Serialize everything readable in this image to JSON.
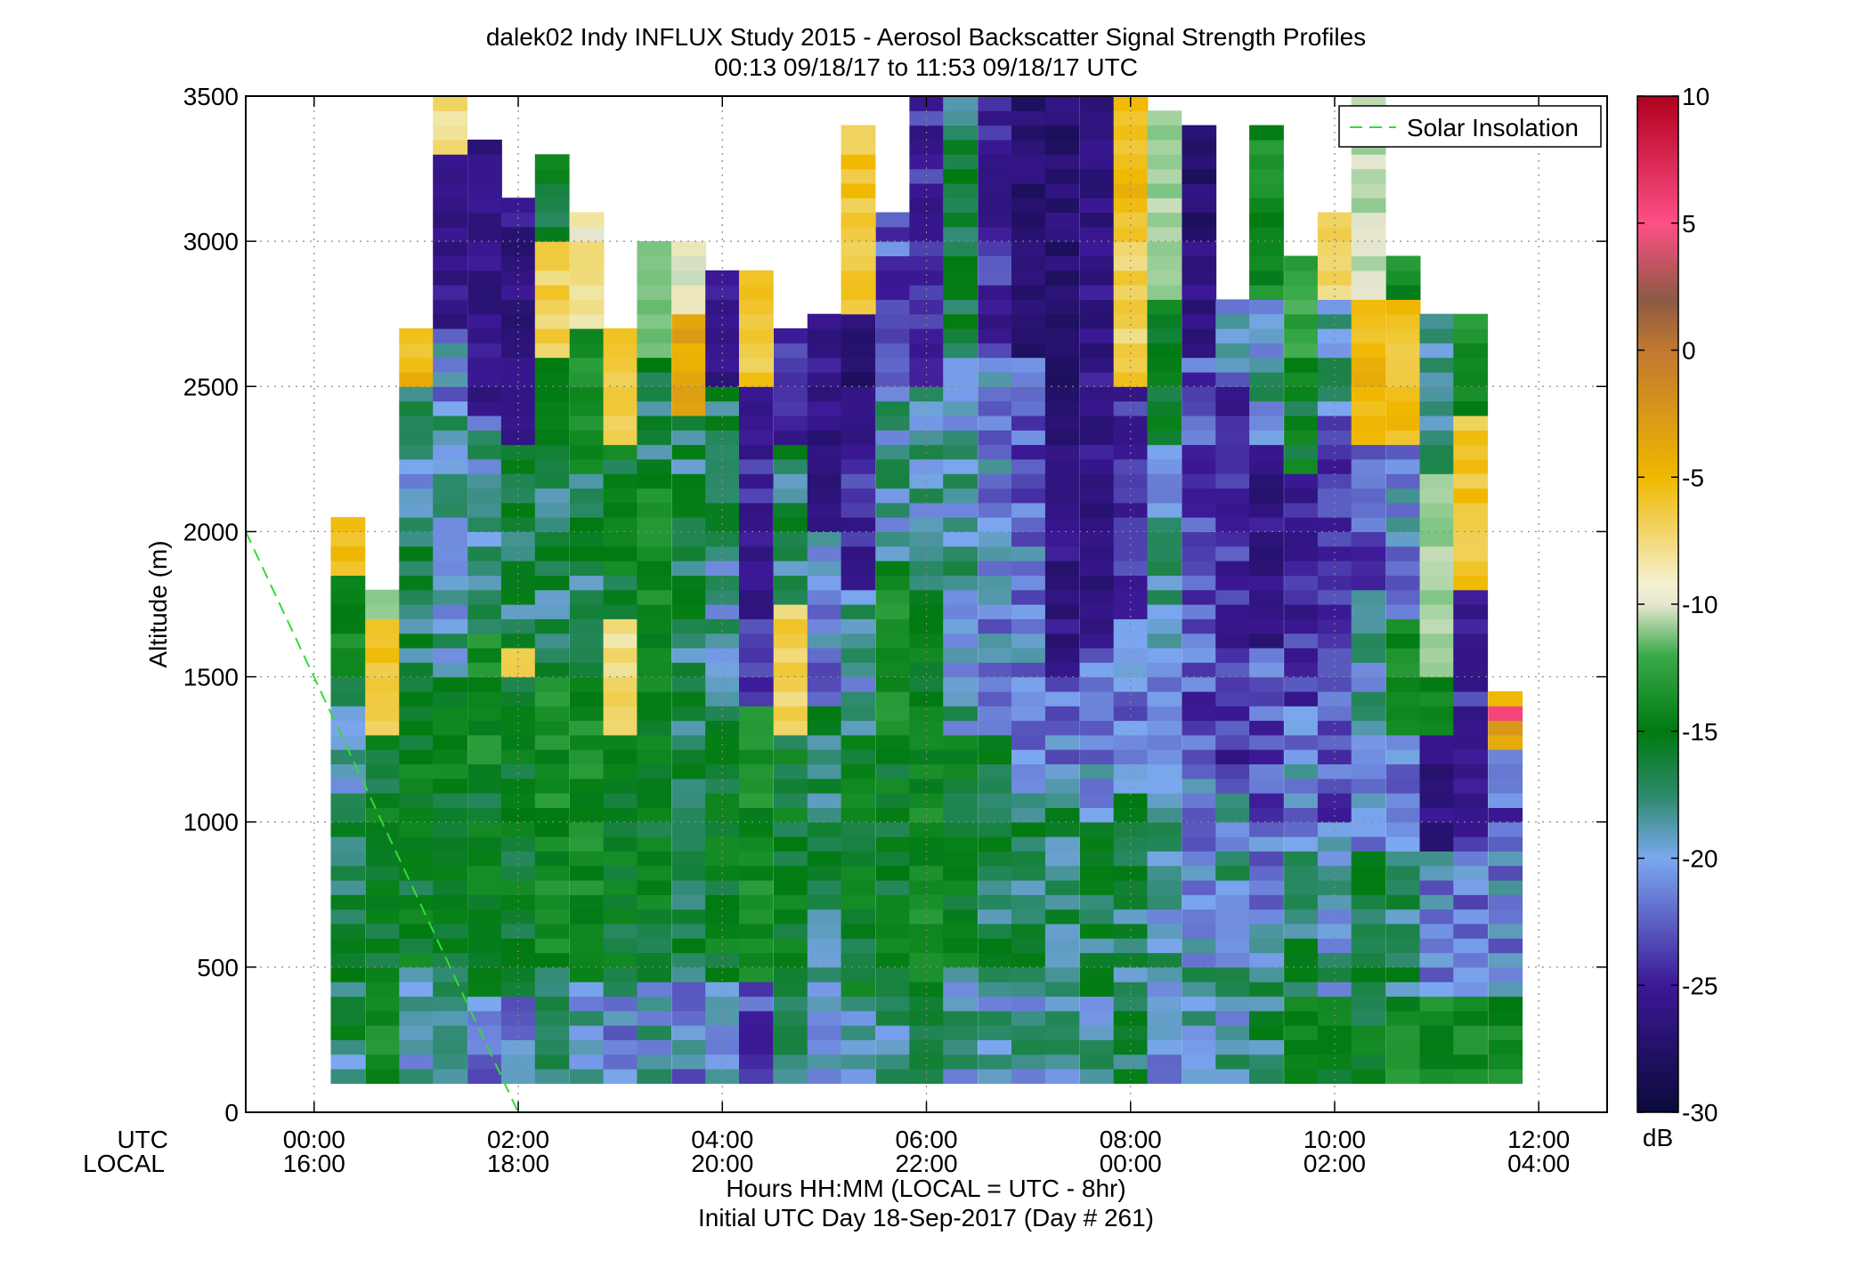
{
  "title": "dalek02 Indy INFLUX Study 2015 - Aerosol Backscatter Signal Strength Profiles",
  "subtitle": "00:13 09/18/17 to 11:53 09/18/17  UTC",
  "ylabel": "Altitude (m)",
  "xlabel": "Hours HH:MM  (LOCAL = UTC - 8hr)",
  "footer": "Initial UTC Day 18-Sep-2017 (Day # 261)",
  "row_label_utc": "UTC",
  "row_label_local": "LOCAL",
  "legend_label": "Solar Insolation",
  "colorbar_unit": "dB",
  "colors": {
    "solar_line": "#33dd33",
    "grid": "#888888"
  },
  "chart_data": {
    "type": "heatmap",
    "x_unit": "UTC hours",
    "xlim": [
      -0.67,
      12.67
    ],
    "ylim": [
      0,
      3500
    ],
    "y_ticks": [
      "0",
      "500",
      "1000",
      "1500",
      "2000",
      "2500",
      "3000",
      "3500"
    ],
    "x_ticks_utc": [
      "00:00",
      "02:00",
      "04:00",
      "06:00",
      "08:00",
      "10:00",
      "12:00"
    ],
    "x_ticks_local": [
      "16:00",
      "18:00",
      "20:00",
      "22:00",
      "00:00",
      "02:00",
      "04:00"
    ],
    "colorbar": {
      "min": -30,
      "max": 10,
      "ticks": [
        "10",
        "5",
        "0",
        "-5",
        "-10",
        "-15",
        "-20",
        "-25",
        "-30"
      ]
    },
    "profile_width_hours": 0.333,
    "bin_height_m": 50,
    "min_altitude_m": 100,
    "profiles": [
      {
        "t": 0.33,
        "top": 2050,
        "segs": [
          [
            100,
            250,
            -22
          ],
          [
            250,
            600,
            -21
          ],
          [
            600,
            1000,
            -21
          ],
          [
            1000,
            1500,
            -22
          ],
          [
            1500,
            1850,
            -19
          ],
          [
            1850,
            2050,
            -6
          ]
        ]
      },
      {
        "t": 0.67,
        "top": 1800,
        "segs": [
          [
            100,
            400,
            -19
          ],
          [
            400,
            1300,
            -20
          ],
          [
            1300,
            1700,
            -6
          ],
          [
            1700,
            1800,
            -13
          ]
        ]
      },
      {
        "t": 1.0,
        "top": 2700,
        "segs": [
          [
            100,
            500,
            -22
          ],
          [
            500,
            1350,
            -20
          ],
          [
            1350,
            2000,
            -21
          ],
          [
            2000,
            2500,
            -22
          ],
          [
            2500,
            2700,
            -5
          ]
        ]
      },
      {
        "t": 1.33,
        "top": 3500,
        "segs": [
          [
            100,
            500,
            -22
          ],
          [
            500,
            1500,
            -20
          ],
          [
            1500,
            2450,
            -22
          ],
          [
            2450,
            2700,
            -23
          ],
          [
            2700,
            3300,
            -26
          ],
          [
            3300,
            3500,
            -8
          ]
        ]
      },
      {
        "t": 1.67,
        "top": 3350,
        "segs": [
          [
            100,
            400,
            -23
          ],
          [
            400,
            1200,
            -20
          ],
          [
            1200,
            1650,
            -19
          ],
          [
            1650,
            2400,
            -22
          ],
          [
            2400,
            3350,
            -26
          ]
        ]
      },
      {
        "t": 2.0,
        "top": 3150,
        "segs": [
          [
            100,
            400,
            -23
          ],
          [
            400,
            1500,
            -20
          ],
          [
            1500,
            1600,
            -7
          ],
          [
            1600,
            2300,
            -21
          ],
          [
            2300,
            3150,
            -26
          ]
        ]
      },
      {
        "t": 2.33,
        "top": 3300,
        "segs": [
          [
            100,
            500,
            -22
          ],
          [
            500,
            1500,
            -19
          ],
          [
            1500,
            2300,
            -21
          ],
          [
            2300,
            2600,
            -19
          ],
          [
            2600,
            3000,
            -7
          ],
          [
            3000,
            3300,
            -20
          ]
        ]
      },
      {
        "t": 2.67,
        "top": 3100,
        "segs": [
          [
            100,
            450,
            -22
          ],
          [
            450,
            1500,
            -19
          ],
          [
            1500,
            2200,
            -21
          ],
          [
            2200,
            2700,
            -19
          ],
          [
            2700,
            3100,
            -9
          ]
        ]
      },
      {
        "t": 3.0,
        "top": 2700,
        "segs": [
          [
            100,
            400,
            -23
          ],
          [
            400,
            1300,
            -20
          ],
          [
            1300,
            1700,
            -8
          ],
          [
            1700,
            2300,
            -20
          ],
          [
            2300,
            2700,
            -6
          ]
        ]
      },
      {
        "t": 3.33,
        "top": 3000,
        "segs": [
          [
            100,
            450,
            -22
          ],
          [
            450,
            1400,
            -20
          ],
          [
            1400,
            2200,
            -19
          ],
          [
            2200,
            2600,
            -21
          ],
          [
            2600,
            3000,
            -14
          ]
        ]
      },
      {
        "t": 3.67,
        "top": 3000,
        "segs": [
          [
            100,
            450,
            -23
          ],
          [
            450,
            1300,
            -21
          ],
          [
            1300,
            2400,
            -21
          ],
          [
            2400,
            2750,
            -4
          ],
          [
            2750,
            3000,
            -10
          ]
        ]
      },
      {
        "t": 4.0,
        "top": 2900,
        "segs": [
          [
            100,
            450,
            -23
          ],
          [
            450,
            1400,
            -20
          ],
          [
            1400,
            2000,
            -22
          ],
          [
            2000,
            2500,
            -21
          ],
          [
            2500,
            2900,
            -26
          ]
        ]
      },
      {
        "t": 4.33,
        "top": 2900,
        "segs": [
          [
            100,
            450,
            -24
          ],
          [
            450,
            1400,
            -19
          ],
          [
            1400,
            2000,
            -25
          ],
          [
            2000,
            2500,
            -25
          ],
          [
            2500,
            2900,
            -6
          ]
        ]
      },
      {
        "t": 4.67,
        "top": 2700,
        "segs": [
          [
            100,
            400,
            -21
          ],
          [
            400,
            1300,
            -20
          ],
          [
            1300,
            1750,
            -7
          ],
          [
            1750,
            2300,
            -21
          ],
          [
            2300,
            2700,
            -25
          ]
        ]
      },
      {
        "t": 5.0,
        "top": 2750,
        "segs": [
          [
            100,
            500,
            -22
          ],
          [
            500,
            1400,
            -21
          ],
          [
            1400,
            2000,
            -23
          ],
          [
            2000,
            2750,
            -26
          ]
        ]
      },
      {
        "t": 5.33,
        "top": 3400,
        "segs": [
          [
            100,
            400,
            -22
          ],
          [
            400,
            1300,
            -20
          ],
          [
            1300,
            1800,
            -22
          ],
          [
            1800,
            2500,
            -25
          ],
          [
            2500,
            2750,
            -27
          ],
          [
            2750,
            3400,
            -6
          ]
        ]
      },
      {
        "t": 5.67,
        "top": 3100,
        "segs": [
          [
            100,
            500,
            -22
          ],
          [
            500,
            1300,
            -20
          ],
          [
            1300,
            1900,
            -19
          ],
          [
            1900,
            2500,
            -22
          ],
          [
            2500,
            3100,
            -24
          ]
        ]
      },
      {
        "t": 6.0,
        "top": 3500,
        "segs": [
          [
            100,
            400,
            -21
          ],
          [
            400,
            1300,
            -19
          ],
          [
            1300,
            1800,
            -20
          ],
          [
            1800,
            2500,
            -22
          ],
          [
            2500,
            3000,
            -25
          ],
          [
            3000,
            3500,
            -25
          ]
        ]
      },
      {
        "t": 6.33,
        "top": 3500,
        "segs": [
          [
            100,
            500,
            -22
          ],
          [
            500,
            1300,
            -20
          ],
          [
            1300,
            2000,
            -22
          ],
          [
            2000,
            2600,
            -22
          ],
          [
            2600,
            3500,
            -21
          ]
        ]
      },
      {
        "t": 6.67,
        "top": 3500,
        "segs": [
          [
            100,
            450,
            -22
          ],
          [
            450,
            1300,
            -21
          ],
          [
            1300,
            2000,
            -23
          ],
          [
            2000,
            2600,
            -23
          ],
          [
            2600,
            3500,
            -25
          ]
        ]
      },
      {
        "t": 7.0,
        "top": 3500,
        "segs": [
          [
            100,
            400,
            -22
          ],
          [
            400,
            1100,
            -21
          ],
          [
            1100,
            2000,
            -23
          ],
          [
            2000,
            2600,
            -24
          ],
          [
            2600,
            3500,
            -27
          ]
        ]
      },
      {
        "t": 7.33,
        "top": 3500,
        "segs": [
          [
            100,
            450,
            -22
          ],
          [
            450,
            1100,
            -21
          ],
          [
            1100,
            1500,
            -23
          ],
          [
            1500,
            2400,
            -26
          ],
          [
            2400,
            3500,
            -27
          ]
        ]
      },
      {
        "t": 7.67,
        "top": 3500,
        "segs": [
          [
            100,
            400,
            -22
          ],
          [
            400,
            1000,
            -21
          ],
          [
            1000,
            1600,
            -23
          ],
          [
            1600,
            2400,
            -26
          ],
          [
            2400,
            3500,
            -26
          ]
        ]
      },
      {
        "t": 8.0,
        "top": 3500,
        "segs": [
          [
            100,
            500,
            -21
          ],
          [
            500,
            1100,
            -21
          ],
          [
            1100,
            1700,
            -23
          ],
          [
            1700,
            2500,
            -25
          ],
          [
            2500,
            3100,
            -7
          ],
          [
            3100,
            3500,
            -5
          ]
        ]
      },
      {
        "t": 8.33,
        "top": 3450,
        "segs": [
          [
            100,
            400,
            -23
          ],
          [
            400,
            1000,
            -22
          ],
          [
            1000,
            1600,
            -23
          ],
          [
            1600,
            2300,
            -22
          ],
          [
            2300,
            2800,
            -20
          ],
          [
            2800,
            3450,
            -12
          ]
        ]
      },
      {
        "t": 8.67,
        "top": 3400,
        "segs": [
          [
            100,
            500,
            -22
          ],
          [
            500,
            1200,
            -23
          ],
          [
            1200,
            1800,
            -24
          ],
          [
            1800,
            2600,
            -24
          ],
          [
            2600,
            3000,
            -26
          ],
          [
            3000,
            3400,
            -27
          ]
        ]
      },
      {
        "t": 9.0,
        "top": 2800,
        "segs": [
          [
            100,
            400,
            -22
          ],
          [
            400,
            1100,
            -22
          ],
          [
            1100,
            1600,
            -25
          ],
          [
            1600,
            2500,
            -25
          ],
          [
            2500,
            2800,
            -23
          ]
        ]
      },
      {
        "t": 9.33,
        "top": 3400,
        "segs": [
          [
            100,
            500,
            -21
          ],
          [
            500,
            1000,
            -23
          ],
          [
            1000,
            1600,
            -24
          ],
          [
            1600,
            2300,
            -26
          ],
          [
            2300,
            2800,
            -22
          ],
          [
            2800,
            3400,
            -19
          ]
        ]
      },
      {
        "t": 9.67,
        "top": 2950,
        "segs": [
          [
            100,
            400,
            -20
          ],
          [
            400,
            900,
            -21
          ],
          [
            900,
            1400,
            -23
          ],
          [
            1400,
            2200,
            -25
          ],
          [
            2200,
            2600,
            -20
          ],
          [
            2600,
            2950,
            -17
          ]
        ]
      },
      {
        "t": 10.0,
        "top": 3100,
        "segs": [
          [
            100,
            400,
            -20
          ],
          [
            400,
            1000,
            -22
          ],
          [
            1000,
            1600,
            -24
          ],
          [
            1600,
            2400,
            -24
          ],
          [
            2400,
            2800,
            -22
          ],
          [
            2800,
            3100,
            -8
          ]
        ]
      },
      {
        "t": 10.33,
        "top": 3500,
        "segs": [
          [
            100,
            400,
            -20
          ],
          [
            400,
            900,
            -21
          ],
          [
            900,
            1300,
            -23
          ],
          [
            1300,
            1800,
            -22
          ],
          [
            1800,
            2300,
            -24
          ],
          [
            2300,
            2800,
            -5
          ],
          [
            2800,
            3500,
            -11
          ]
        ]
      },
      {
        "t": 10.67,
        "top": 2950,
        "segs": [
          [
            100,
            400,
            -19
          ],
          [
            400,
            900,
            -21
          ],
          [
            900,
            1300,
            -23
          ],
          [
            1300,
            1700,
            -19
          ],
          [
            1700,
            2300,
            -23
          ],
          [
            2300,
            2800,
            -6
          ],
          [
            2800,
            2950,
            -19
          ]
        ]
      },
      {
        "t": 11.0,
        "top": 2750,
        "segs": [
          [
            100,
            400,
            -19
          ],
          [
            400,
            900,
            -23
          ],
          [
            900,
            1300,
            -26
          ],
          [
            1300,
            1500,
            -19
          ],
          [
            1500,
            2200,
            -12
          ],
          [
            2200,
            2750,
            -22
          ]
        ]
      },
      {
        "t": 11.33,
        "top": 2750,
        "segs": [
          [
            100,
            400,
            -19
          ],
          [
            400,
            900,
            -23
          ],
          [
            900,
            1300,
            -25
          ],
          [
            1300,
            1800,
            -25
          ],
          [
            1800,
            2400,
            -6
          ],
          [
            2400,
            2750,
            -19
          ]
        ]
      },
      {
        "t": 11.67,
        "top": 1450,
        "segs": [
          [
            100,
            400,
            -19
          ],
          [
            400,
            900,
            -23
          ],
          [
            900,
            1250,
            -24
          ],
          [
            1250,
            1350,
            -3
          ],
          [
            1350,
            1400,
            5
          ],
          [
            1400,
            1450,
            -6
          ]
        ]
      }
    ],
    "solar_insolation_line": [
      [
        -0.67,
        2000
      ],
      [
        2.0,
        0
      ]
    ]
  }
}
